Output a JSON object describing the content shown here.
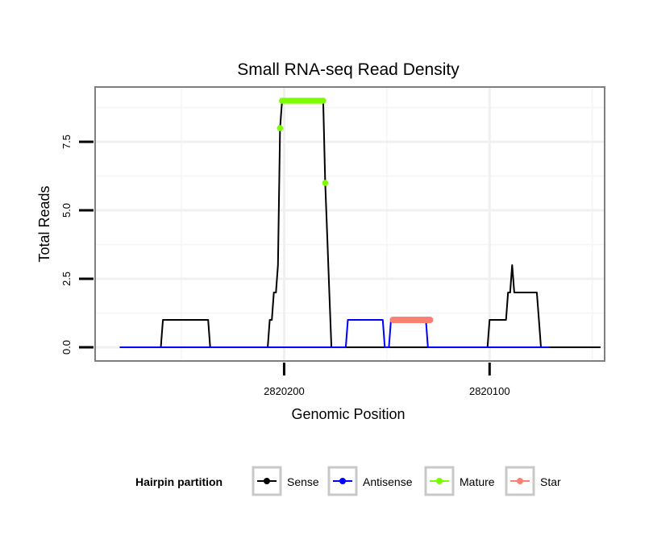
{
  "chart_data": {
    "type": "line",
    "title": "Small RNA-seq Read Density",
    "xlabel": "Genomic Position",
    "ylabel": "Total Reads",
    "x_reversed": true,
    "xlim": [
      2820292,
      2820044
    ],
    "ylim": [
      -0.5,
      9.5
    ],
    "x_ticks": [
      2820200,
      2820100
    ],
    "x_tick_labels": [
      "2820200",
      "2820100"
    ],
    "y_ticks": [
      0,
      2.5,
      5,
      7.5
    ],
    "y_tick_labels": [
      "0.0",
      "2.5",
      "5.0",
      "7.5"
    ],
    "grid": true,
    "legend": {
      "title": "Hairpin partition",
      "position": "bottom",
      "entries": [
        {
          "name": "Sense",
          "color": "#000000"
        },
        {
          "name": "Antisense",
          "color": "#0000ff"
        },
        {
          "name": "Mature",
          "color": "#7cfc00"
        },
        {
          "name": "Star",
          "color": "#fa8072"
        }
      ]
    },
    "series": [
      {
        "name": "Sense",
        "color": "#000000",
        "x": [
          2820280,
          2820260,
          2820259,
          2820237,
          2820236,
          2820208,
          2820207,
          2820206,
          2820205,
          2820204,
          2820203,
          2820202,
          2820201,
          2820200,
          2820199,
          2820198,
          2820197,
          2820196,
          2820195,
          2820194,
          2820193,
          2820192,
          2820191,
          2820190,
          2820189,
          2820188,
          2820187,
          2820186,
          2820185,
          2820184,
          2820183,
          2820182,
          2820181,
          2820180,
          2820179,
          2820178,
          2820177,
          2820176,
          2820175,
          2820174,
          2820173,
          2820160,
          2820159,
          2820140,
          2820139,
          2820122,
          2820121,
          2820101,
          2820100,
          2820099,
          2820092,
          2820091,
          2820090,
          2820089,
          2820088,
          2820087,
          2820086,
          2820085,
          2820084,
          2820083,
          2820082,
          2820081,
          2820080,
          2820079,
          2820078,
          2820077,
          2820076,
          2820075,
          2820074,
          2820073,
          2820072,
          2820071,
          2820070,
          2820069,
          2820068,
          2820067,
          2820066,
          2820065,
          2820064,
          2820063,
          2820062,
          2820061,
          2820060,
          2820059,
          2820058,
          2820057,
          2820056,
          2820055,
          2820054,
          2820053,
          2820052,
          2820051,
          2820050,
          2820049,
          2820048,
          2820047,
          2820046
        ],
        "y": [
          0,
          0,
          1,
          1,
          0,
          0,
          1,
          1,
          2,
          2,
          3,
          8,
          9,
          9,
          9,
          9,
          9,
          9,
          9,
          9,
          9,
          9,
          9,
          9,
          9,
          9,
          9,
          9,
          9,
          9,
          9,
          9,
          9,
          6,
          4,
          2,
          0,
          0,
          0,
          0,
          0,
          0,
          0,
          0,
          0,
          0,
          0,
          0,
          1,
          1,
          1,
          2,
          2,
          3,
          2,
          2,
          2,
          2,
          2,
          2,
          2,
          2,
          2,
          2,
          2,
          2,
          1,
          0,
          0,
          0,
          0,
          0,
          0,
          0,
          0,
          0,
          0,
          0,
          0,
          0,
          0,
          0,
          0,
          0,
          0,
          0,
          0,
          0,
          0,
          0,
          0,
          0,
          0,
          0,
          0,
          0,
          0
        ]
      },
      {
        "name": "Antisense",
        "color": "#0000ff",
        "x": [
          2820280,
          2820170,
          2820169,
          2820152,
          2820151,
          2820149,
          2820148,
          2820131,
          2820130,
          2820071
        ],
        "y": [
          0,
          0,
          1,
          1,
          0,
          0,
          1,
          1,
          0,
          0
        ]
      },
      {
        "name": "Mature",
        "color": "#7cfc00",
        "x": [
          2820202,
          2820201,
          2820200,
          2820199,
          2820198,
          2820197,
          2820196,
          2820195,
          2820194,
          2820193,
          2820192,
          2820191,
          2820190,
          2820189,
          2820188,
          2820187,
          2820186,
          2820185,
          2820184,
          2820183,
          2820182,
          2820181,
          2820180
        ],
        "y": [
          8,
          9,
          9,
          9,
          9,
          9,
          9,
          9,
          9,
          9,
          9,
          9,
          9,
          9,
          9,
          9,
          9,
          9,
          9,
          9,
          9,
          9,
          6
        ]
      },
      {
        "name": "Star",
        "color": "#fa8072",
        "x": [
          2820147,
          2820146,
          2820145,
          2820144,
          2820143,
          2820142,
          2820141,
          2820140,
          2820139,
          2820138,
          2820137,
          2820136,
          2820135,
          2820134,
          2820133,
          2820132,
          2820131,
          2820130,
          2820129
        ],
        "y": [
          1,
          1,
          1,
          1,
          1,
          1,
          1,
          1,
          1,
          1,
          1,
          1,
          1,
          1,
          1,
          1,
          1,
          1,
          1
        ]
      }
    ]
  }
}
